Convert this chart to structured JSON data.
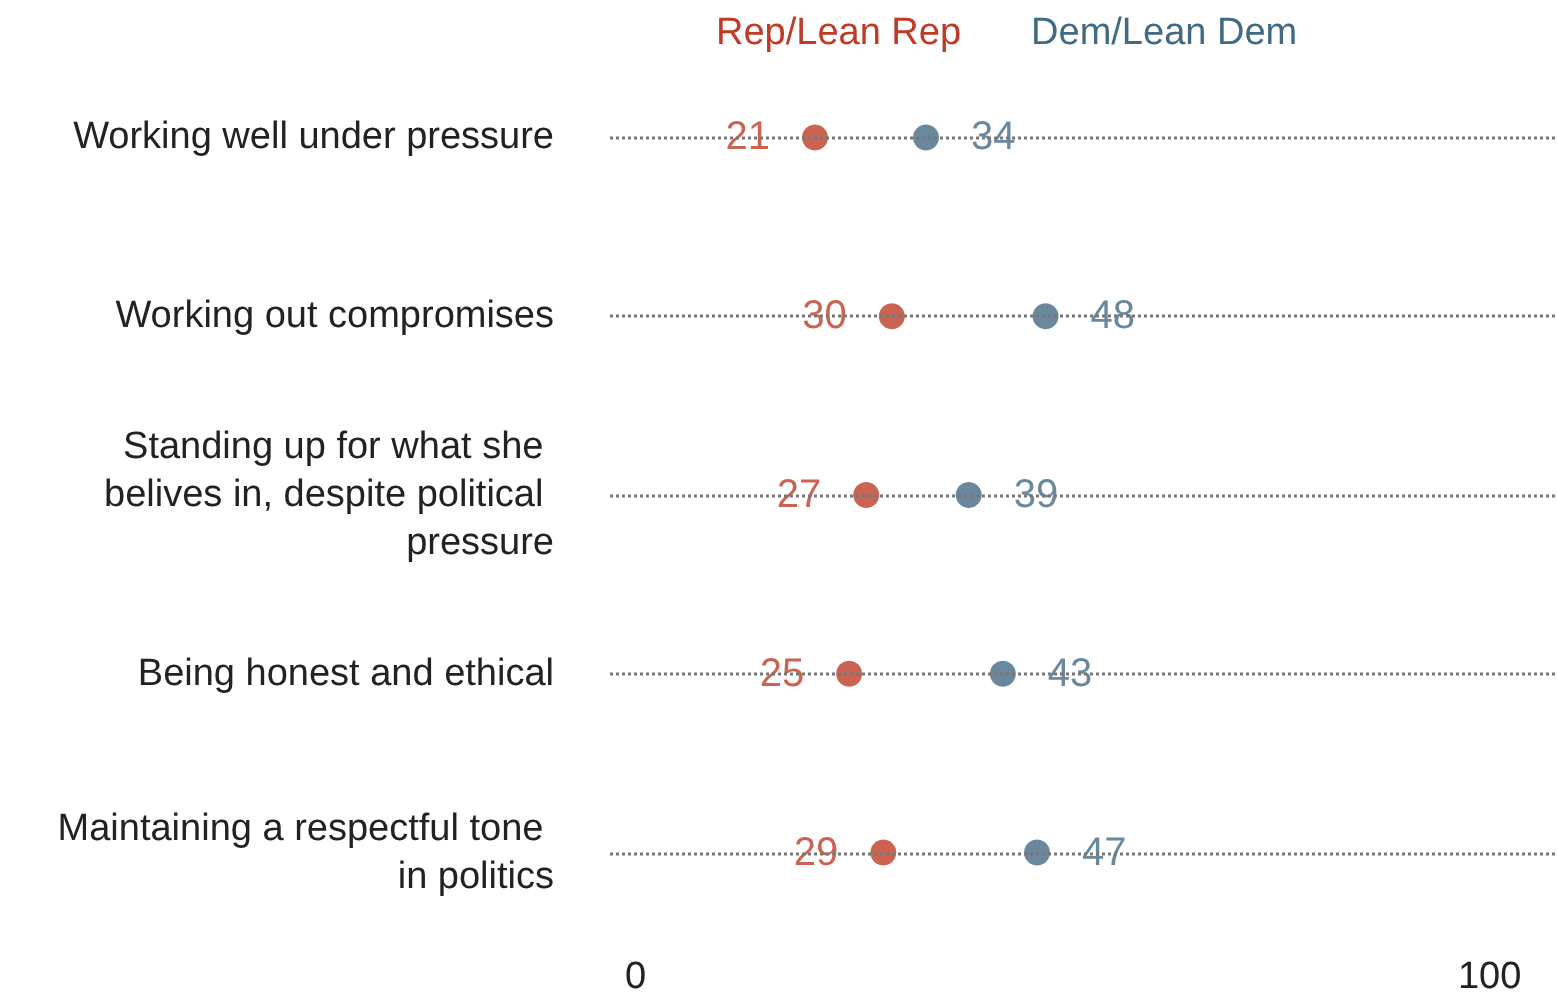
{
  "chart_data": {
    "type": "scatter",
    "orientation": "horizontal",
    "categories": [
      "Working well under pressure",
      "Working out compromises",
      "Standing up for what she belives in, despite political pressure",
      "Being honest and ethical",
      "Maintaining a respectful tone in politics"
    ],
    "series": [
      {
        "name": "Rep/Lean Rep",
        "color": "#bf3b27",
        "values": [
          21,
          30,
          27,
          25,
          29
        ]
      },
      {
        "name": "Dem/Lean Dem",
        "color": "#436a85",
        "values": [
          34,
          48,
          39,
          43,
          47
        ]
      }
    ],
    "xlim": [
      -3,
      108
    ],
    "xticks": [
      0,
      100
    ],
    "grid": "y",
    "legend": "top",
    "marker": "circle",
    "data_labels": true
  }
}
